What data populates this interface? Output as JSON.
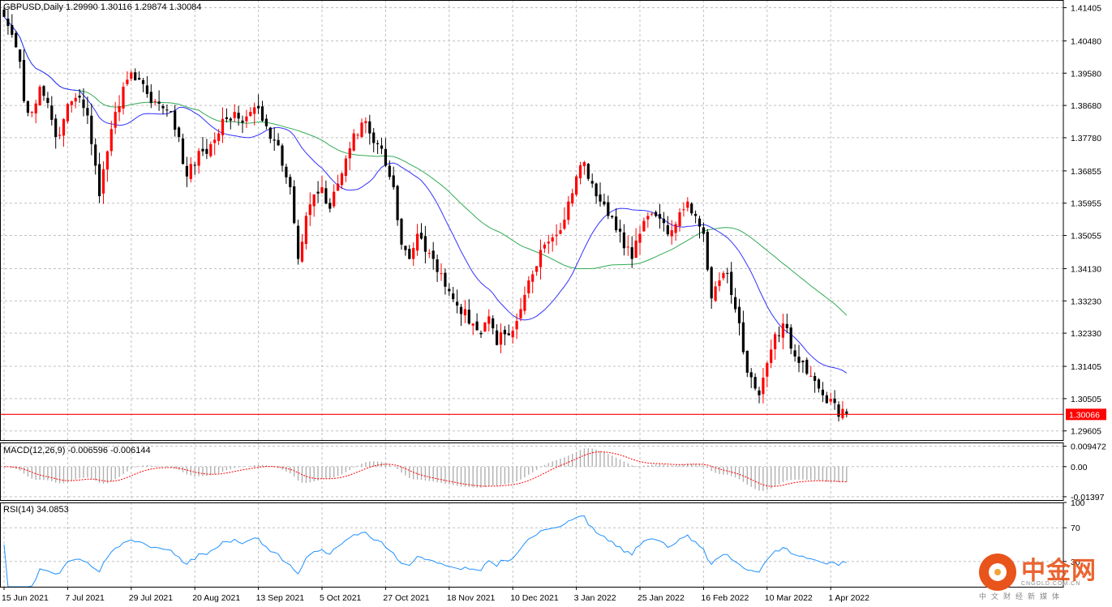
{
  "chart_data": [
    {
      "type": "candlestick",
      "symbol_line": "GBPUSD,Daily  1.29990 1.30116 1.29874 1.30084",
      "ylim": [
        1.2935,
        1.4162
      ],
      "y_ticks": [
        "1.41405",
        "1.40480",
        "1.39580",
        "1.38680",
        "1.37780",
        "1.36855",
        "1.35955",
        "1.35055",
        "1.34130",
        "1.33230",
        "1.32330",
        "1.31405",
        "1.30505",
        "1.29605"
      ],
      "y_tick_values": [
        1.41405,
        1.4048,
        1.3958,
        1.3868,
        1.3778,
        1.36855,
        1.35955,
        1.35055,
        1.3413,
        1.3323,
        1.3233,
        1.31405,
        1.30505,
        1.29605
      ],
      "x_ticks": [
        "15 Jun 2021",
        "7 Jul 2021",
        "29 Jul 2021",
        "20 Aug 2021",
        "13 Sep 2021",
        "5 Oct 2021",
        "27 Oct 2021",
        "18 Nov 2021",
        "10 Dec 2021",
        "3 Jan 2022",
        "25 Jan 2022",
        "16 Feb 2022",
        "10 Mar 2022",
        "1 Apr 2022"
      ],
      "x_tick_index": [
        0,
        16,
        32,
        48,
        64,
        80,
        96,
        112,
        128,
        144,
        160,
        176,
        192,
        208
      ],
      "current_price": 1.30066,
      "current_price_label": "1.30066",
      "colors": {
        "up": "#ff0000",
        "down": "#000000",
        "ma_fast": "#3333ff",
        "ma_slow": "#33aa55",
        "price_line": "#ff0000",
        "grid": "#c0c0c0"
      },
      "anchors": [
        [
          0,
          1.4115
        ],
        [
          2,
          1.4065
        ],
        [
          4,
          1.399
        ],
        [
          5,
          1.388
        ],
        [
          7,
          1.385
        ],
        [
          9,
          1.392
        ],
        [
          11,
          1.3875
        ],
        [
          13,
          1.378
        ],
        [
          15,
          1.383
        ],
        [
          17,
          1.388
        ],
        [
          19,
          1.389
        ],
        [
          21,
          1.384
        ],
        [
          23,
          1.37
        ],
        [
          24,
          1.3615
        ],
        [
          26,
          1.374
        ],
        [
          28,
          1.385
        ],
        [
          30,
          1.392
        ],
        [
          32,
          1.396
        ],
        [
          34,
          1.394
        ],
        [
          36,
          1.39
        ],
        [
          38,
          1.388
        ],
        [
          40,
          1.386
        ],
        [
          42,
          1.385
        ],
        [
          44,
          1.378
        ],
        [
          46,
          1.367
        ],
        [
          48,
          1.37
        ],
        [
          50,
          1.374
        ],
        [
          52,
          1.376
        ],
        [
          54,
          1.379
        ],
        [
          56,
          1.383
        ],
        [
          58,
          1.385
        ],
        [
          60,
          1.382
        ],
        [
          62,
          1.385
        ],
        [
          64,
          1.386
        ],
        [
          66,
          1.381
        ],
        [
          68,
          1.377
        ],
        [
          70,
          1.37
        ],
        [
          72,
          1.364
        ],
        [
          73,
          1.354
        ],
        [
          74,
          1.344
        ],
        [
          76,
          1.356
        ],
        [
          78,
          1.362
        ],
        [
          80,
          1.364
        ],
        [
          82,
          1.358
        ],
        [
          84,
          1.365
        ],
        [
          86,
          1.372
        ],
        [
          88,
          1.379
        ],
        [
          90,
          1.382
        ],
        [
          92,
          1.379
        ],
        [
          94,
          1.376
        ],
        [
          96,
          1.37
        ],
        [
          98,
          1.364
        ],
        [
          100,
          1.348
        ],
        [
          102,
          1.344
        ],
        [
          104,
          1.351
        ],
        [
          106,
          1.346
        ],
        [
          108,
          1.344
        ],
        [
          110,
          1.34
        ],
        [
          112,
          1.335
        ],
        [
          114,
          1.331
        ],
        [
          116,
          1.33
        ],
        [
          118,
          1.326
        ],
        [
          120,
          1.323
        ],
        [
          122,
          1.328
        ],
        [
          124,
          1.32
        ],
        [
          126,
          1.323
        ],
        [
          128,
          1.324
        ],
        [
          130,
          1.33
        ],
        [
          132,
          1.338
        ],
        [
          134,
          1.342
        ],
        [
          136,
          1.348
        ],
        [
          138,
          1.35
        ],
        [
          140,
          1.352
        ],
        [
          142,
          1.36
        ],
        [
          144,
          1.367
        ],
        [
          146,
          1.371
        ],
        [
          148,
          1.365
        ],
        [
          150,
          1.36
        ],
        [
          152,
          1.356
        ],
        [
          154,
          1.352
        ],
        [
          156,
          1.347
        ],
        [
          158,
          1.344
        ],
        [
          160,
          1.351
        ],
        [
          162,
          1.356
        ],
        [
          164,
          1.356
        ],
        [
          166,
          1.354
        ],
        [
          168,
          1.352
        ],
        [
          170,
          1.357
        ],
        [
          172,
          1.36
        ],
        [
          174,
          1.356
        ],
        [
          176,
          1.351
        ],
        [
          177,
          1.341
        ],
        [
          178,
          1.333
        ],
        [
          180,
          1.338
        ],
        [
          182,
          1.34
        ],
        [
          184,
          1.33
        ],
        [
          186,
          1.318
        ],
        [
          188,
          1.311
        ],
        [
          190,
          1.306
        ],
        [
          192,
          1.315
        ],
        [
          194,
          1.323
        ],
        [
          196,
          1.326
        ],
        [
          198,
          1.319
        ],
        [
          200,
          1.315
        ],
        [
          202,
          1.312
        ],
        [
          204,
          1.31
        ],
        [
          206,
          1.306
        ],
        [
          208,
          1.305
        ],
        [
          210,
          1.3
        ],
        [
          212,
          1.3008
        ]
      ]
    },
    {
      "type": "line",
      "name": "macd",
      "title": "MACD(12,26,9) -0.006596 -0.006144",
      "ylim": [
        -0.0155,
        0.0112
      ],
      "y_ticks": [
        "0.009472",
        "0.00",
        "-0.01397"
      ],
      "y_tick_values": [
        0.009472,
        0.0,
        -0.01397
      ],
      "colors": {
        "histogram": "#b0b0b0",
        "signal": "#ff0000"
      }
    },
    {
      "type": "line",
      "name": "rsi",
      "title": "RSI(14) 34.0853",
      "ylim": [
        0,
        100
      ],
      "y_ticks": [
        "100",
        "70",
        "30"
      ],
      "y_tick_values": [
        100,
        70,
        30
      ],
      "colors": {
        "line": "#1e90ff"
      }
    }
  ],
  "watermark": {
    "brand": "中金网",
    "domain": "CNGOLD.COM.CN",
    "tagline": "中文财经新媒体"
  }
}
